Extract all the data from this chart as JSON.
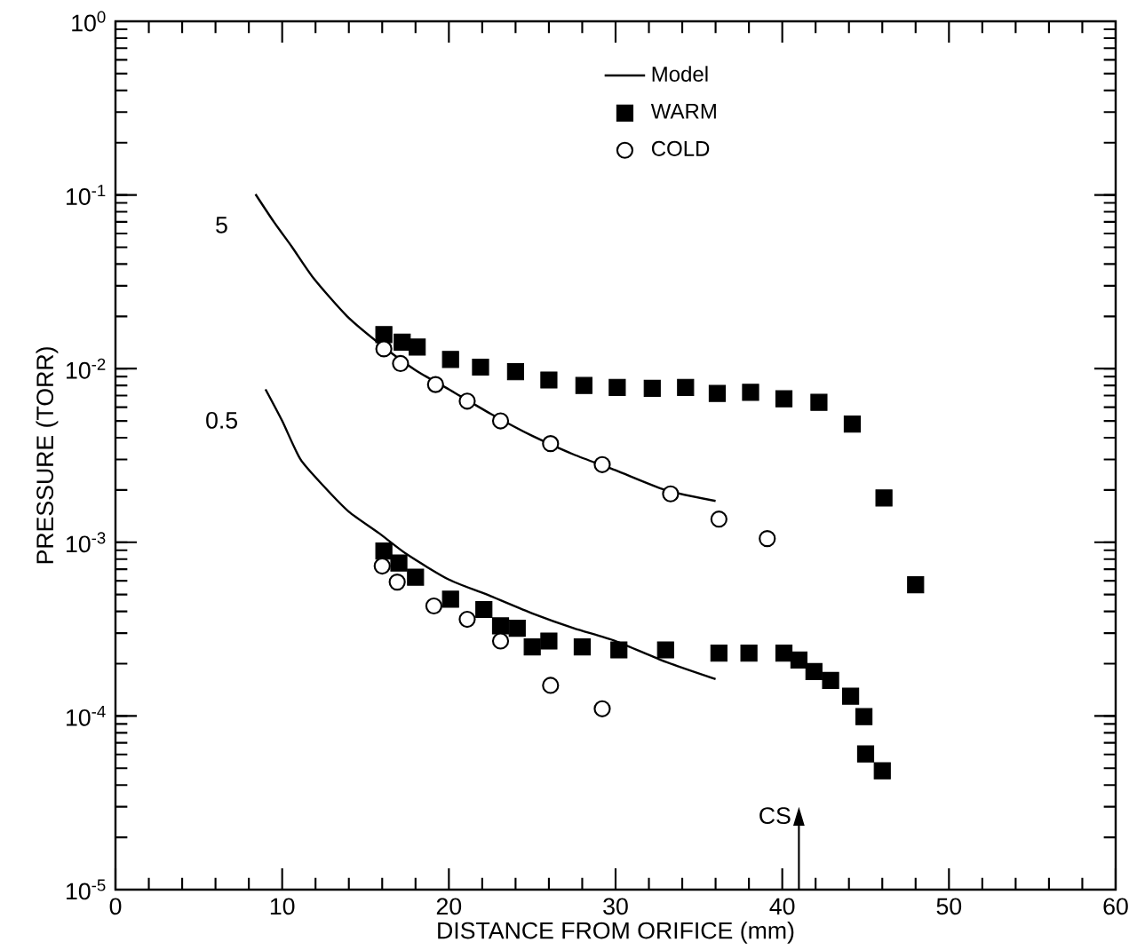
{
  "chart_data": {
    "type": "scatter",
    "xlabel": "DISTANCE FROM ORIFICE (mm)",
    "ylabel": "PRESSURE (TORR)",
    "log": "y",
    "xlim": [
      0,
      60
    ],
    "xticks": [
      0,
      10,
      20,
      30,
      40,
      50,
      60
    ],
    "ylim": [
      1e-05,
      1
    ],
    "yticks": [
      {
        "value": 1e-05,
        "label": "10$^{-5}$"
      },
      {
        "value": 0.0001,
        "label": "10$^{-4}$"
      },
      {
        "value": 0.001,
        "label": "10$^{-3}$"
      },
      {
        "value": 0.01,
        "label": "10$^{-2}$"
      },
      {
        "value": 0.1,
        "label": "10$^{-1}$"
      },
      {
        "value": 1,
        "label": "10$^{0}$"
      }
    ],
    "grid": false,
    "legend": "top",
    "series": [
      {
        "name": "Model",
        "type": "line",
        "color": "#000000",
        "marker": "none",
        "line_style": "solid",
        "x": [
          8.4,
          9.5,
          10.6,
          11.9,
          13.9,
          16.1,
          18,
          20,
          22.5,
          25,
          27.5,
          30,
          33,
          36
        ],
        "values": [
          0.101,
          0.07,
          0.05,
          0.033,
          0.02,
          0.0133,
          0.0098,
          0.0076,
          0.0055,
          0.0041,
          0.0032,
          0.0026,
          0.002,
          0.00173
        ]
      },
      {
        "type": "line",
        "color": "#000000",
        "marker": "none",
        "line_style": "solid",
        "x": [
          9,
          10,
          11.1,
          12.5,
          14,
          15.8,
          17.5,
          20,
          22.5,
          25,
          27.5,
          30,
          33,
          36
        ],
        "values": [
          0.0076,
          0.005,
          0.003,
          0.0021,
          0.0015,
          0.00113,
          0.00085,
          0.00061,
          0.00049,
          0.00039,
          0.00032,
          0.00027,
          0.000205,
          0.000163
        ]
      },
      {
        "name": "WARM",
        "color": "#000000",
        "marker": "square",
        "x": [
          16.1,
          17.2,
          18.1,
          20.1,
          21.9,
          24,
          26,
          28.1,
          30.1,
          32.2,
          34.2,
          36.1,
          38.1,
          40.1,
          42.2,
          44.2,
          46.1,
          48
        ],
        "values": [
          0.0157,
          0.0142,
          0.0133,
          0.0113,
          0.0102,
          0.0096,
          0.0086,
          0.008,
          0.0078,
          0.0077,
          0.0078,
          0.0072,
          0.0073,
          0.0067,
          0.0064,
          0.0048,
          0.0018,
          0.00057
        ]
      },
      {
        "color": "#000000",
        "marker": "square",
        "x": [
          16.1,
          17,
          18,
          20.1,
          22.1,
          23.1,
          24.1,
          25,
          26,
          28,
          30.2,
          33,
          36.2,
          38,
          40.1,
          41,
          41.9,
          42.9,
          44.1,
          44.9,
          45,
          46
        ],
        "values": [
          0.00089,
          0.00076,
          0.00063,
          0.00047,
          0.00041,
          0.00033,
          0.00032,
          0.00025,
          0.00027,
          0.00025,
          0.00024,
          0.00024,
          0.00023,
          0.00023,
          0.00023,
          0.00021,
          0.00018,
          0.00016,
          0.00013,
          9.91e-05,
          6.04e-05,
          4.83e-05
        ]
      },
      {
        "name": "COLD",
        "color": "#000000",
        "marker": "circle",
        "x": [
          16.1,
          17.1,
          19.2,
          21.1,
          23.1,
          26.1,
          29.2,
          33.3,
          36.2,
          39.1
        ],
        "values": [
          0.013,
          0.0107,
          0.0081,
          0.0065,
          0.005,
          0.0037,
          0.0028,
          0.0019,
          0.00136,
          0.00105
        ]
      },
      {
        "color": "#000000",
        "marker": "circle",
        "x": [
          16,
          16.9,
          19.1,
          21.1,
          23.1,
          26.1,
          29.2
        ],
        "values": [
          0.00073,
          0.00059,
          0.00043,
          0.00036,
          0.00027,
          0.00015,
          0.00011
        ]
      }
    ],
    "annotations": [
      {
        "text": "5",
        "x": 8.4,
        "y": 0.101
      },
      {
        "text": "0.5",
        "x": 9,
        "y": 0.0076
      },
      "CS"
    ]
  }
}
